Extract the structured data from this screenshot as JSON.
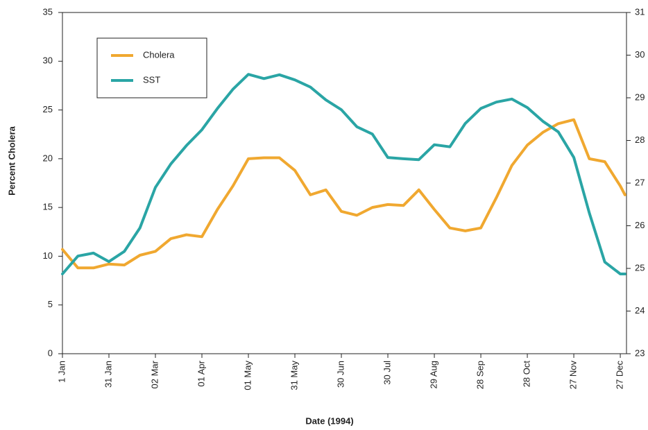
{
  "chart_data": {
    "type": "line",
    "xlabel": "Date (1994)",
    "ylabel": "Percent Cholera",
    "x": [
      "1994-01-01",
      "1994-01-11",
      "1994-01-21",
      "1994-01-31",
      "1994-02-10",
      "1994-02-20",
      "1994-03-02",
      "1994-03-12",
      "1994-03-22",
      "1994-04-01",
      "1994-04-11",
      "1994-04-21",
      "1994-05-01",
      "1994-05-11",
      "1994-05-21",
      "1994-05-31",
      "1994-06-10",
      "1994-06-20",
      "1994-06-30",
      "1994-07-10",
      "1994-07-20",
      "1994-07-30",
      "1994-08-09",
      "1994-08-19",
      "1994-08-29",
      "1994-09-08",
      "1994-09-18",
      "1994-09-28",
      "1994-10-08",
      "1994-10-18",
      "1994-10-28",
      "1994-11-07",
      "1994-11-17",
      "1994-11-27",
      "1994-12-07",
      "1994-12-17",
      "1994-12-27",
      "1994-12-30"
    ],
    "series": [
      {
        "name": "Cholera",
        "color": "#f0a830",
        "values": [
          10.7,
          8.8,
          8.8,
          9.2,
          9.1,
          10.1,
          10.5,
          11.8,
          12.2,
          12.0,
          14.8,
          17.2,
          20.0,
          20.1,
          20.1,
          18.8,
          16.3,
          16.8,
          14.6,
          14.2,
          15.0,
          15.3,
          15.2,
          16.8,
          14.8,
          12.9,
          12.6,
          12.9,
          16.0,
          19.3,
          21.4,
          22.7,
          23.6,
          24.0,
          20.0,
          19.7,
          17.2,
          16.3
        ]
      },
      {
        "name": "SST",
        "color": "#2aa5a5",
        "axis": "y2",
        "values": [
          24.87,
          25.29,
          25.36,
          25.16,
          25.4,
          25.95,
          26.9,
          27.45,
          27.88,
          28.25,
          28.75,
          29.2,
          29.55,
          29.45,
          29.54,
          29.42,
          29.25,
          28.95,
          28.72,
          28.32,
          28.15,
          27.6,
          27.57,
          27.55,
          27.9,
          27.85,
          28.4,
          28.75,
          28.9,
          28.97,
          28.77,
          28.45,
          28.2,
          27.6,
          26.3,
          25.15,
          24.87,
          24.87
        ]
      }
    ],
    "xlim": [
      "1994-01-01",
      "1994-12-31"
    ],
    "xticks": [
      {
        "value": "1994-01-01",
        "label": "1 Jan"
      },
      {
        "value": "1994-01-31",
        "label": "31 Jan"
      },
      {
        "value": "1994-03-02",
        "label": "02 Mar"
      },
      {
        "value": "1994-04-01",
        "label": "01 Apr"
      },
      {
        "value": "1994-05-01",
        "label": "01 May"
      },
      {
        "value": "1994-05-31",
        "label": "31 May"
      },
      {
        "value": "1994-06-30",
        "label": "30 Jun"
      },
      {
        "value": "1994-07-30",
        "label": "30 Jul"
      },
      {
        "value": "1994-08-29",
        "label": "29 Aug"
      },
      {
        "value": "1994-09-28",
        "label": "28 Sep"
      },
      {
        "value": "1994-10-28",
        "label": "28 Oct"
      },
      {
        "value": "1994-11-27",
        "label": "27 Nov"
      },
      {
        "value": "1994-12-27",
        "label": "27 Dec"
      }
    ],
    "ylim": [
      0,
      35
    ],
    "yticks": [
      0,
      5,
      10,
      15,
      20,
      25,
      30,
      35
    ],
    "y2lim": [
      23,
      31
    ],
    "y2ticks": [
      23,
      24,
      25,
      26,
      27,
      28,
      29,
      30,
      31
    ],
    "legend": "upper left"
  }
}
